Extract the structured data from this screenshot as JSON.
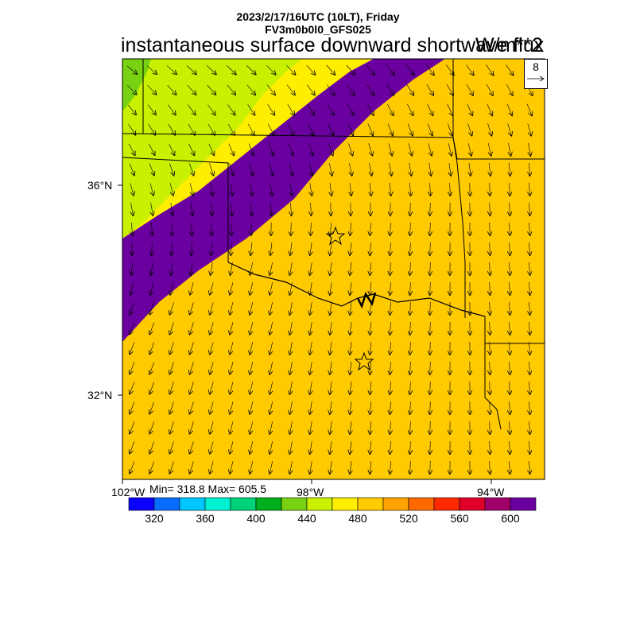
{
  "header": {
    "datetime": "2023/2/17/16UTC (10LT), Friday",
    "model": "FV3m0b0l0_GFS025",
    "variable": "instantaneous surface downward shortwave flux",
    "units": "W/m**2"
  },
  "stats": {
    "text": "Min= 318.8 Max= 605.5",
    "min": 318.8,
    "max": 605.5
  },
  "reference_vector": {
    "label": "8"
  },
  "map": {
    "lat_labels": [
      "36°N",
      "32°N"
    ],
    "lon_labels": [
      "102°W",
      "98°W",
      "94°W"
    ],
    "markers": [
      {
        "type": "star",
        "name": "star-marker-north"
      },
      {
        "type": "star",
        "name": "star-marker-south"
      }
    ]
  },
  "colorbar": {
    "colors": [
      "#0a00ff",
      "#0a6cff",
      "#00c6ff",
      "#00f0d2",
      "#00d27a",
      "#00ae1e",
      "#78d212",
      "#c8f000",
      "#ffee00",
      "#ffca00",
      "#ffa200",
      "#ff6a00",
      "#ff2a00",
      "#e00028",
      "#a0006a",
      "#6a00a0"
    ],
    "labels": [
      "320",
      "360",
      "400",
      "440",
      "480",
      "520",
      "560",
      "600"
    ]
  },
  "palette": {
    "c430": "#78d212",
    "c450": "#c8f000",
    "c470": "#ffee00",
    "c490": "#ffca00",
    "c510": "#ffa200",
    "c530": "#ff6a00",
    "c550": "#ff2a00",
    "c570": "#e00028",
    "c590": "#a0006a",
    "c610": "#6a00a0"
  }
}
